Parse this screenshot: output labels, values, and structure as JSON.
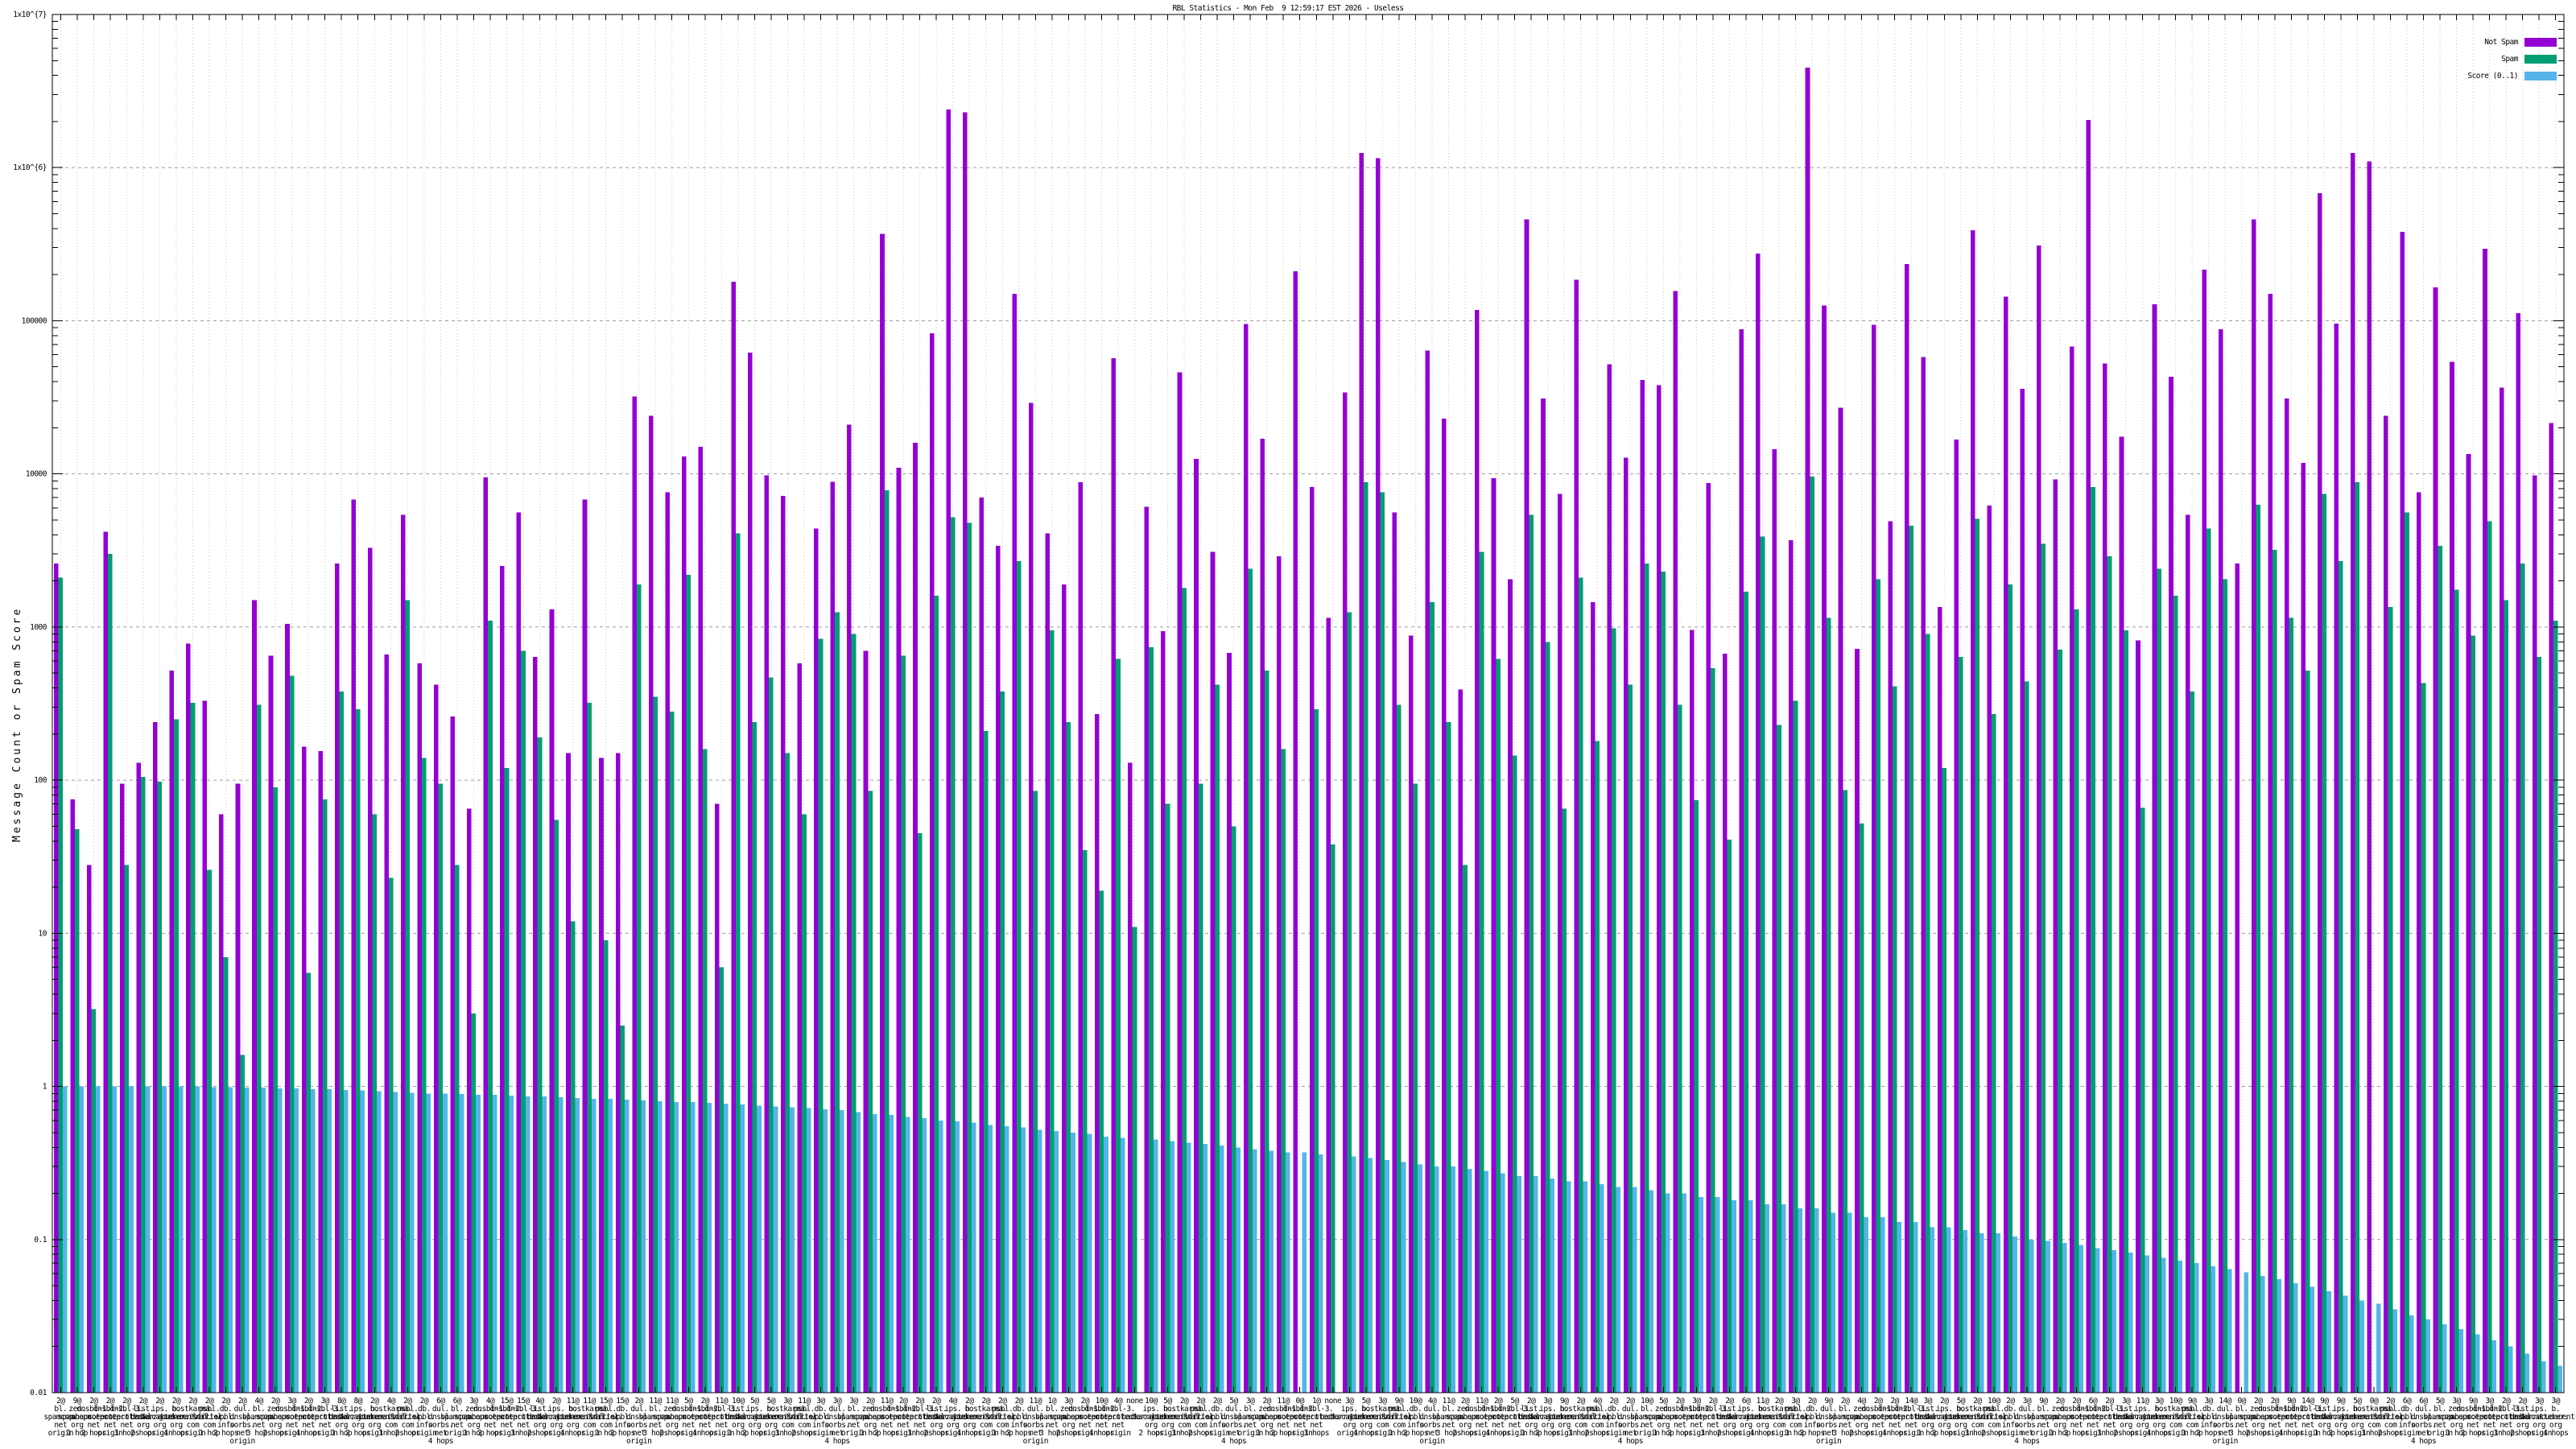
{
  "window": {
    "title": "RBL Statistics - Mon Feb  9 12:59:17 EST 2026 - Useless"
  },
  "legend": {
    "position": "top-right",
    "items": [
      {
        "label": "Not Spam",
        "color": "#9400d3"
      },
      {
        "label": "Spam",
        "color": "#009e73"
      },
      {
        "label": "Score (0..1)",
        "color": "#56b4e9"
      }
    ]
  },
  "y_axis": {
    "title": "Message Count or Spam Score",
    "scale": "log",
    "tick_labels": [
      "1x10^{7}",
      "1x10^{6}",
      "100000",
      "10000",
      "1000",
      "100",
      "10",
      "1",
      "0.1",
      "0.01"
    ],
    "tick_exponents": [
      7,
      6,
      5,
      4,
      3,
      2,
      1,
      0,
      -1,
      -2
    ]
  },
  "chart_data": {
    "type": "bar",
    "title": "RBL Statistics - Mon Feb  9 12:59:17 EST 2026 - Useless",
    "xlabel": "",
    "ylabel": "Message Count or Spam Score",
    "y_scale": "log",
    "ylim": [
      0.01,
      10000000
    ],
    "grid": true,
    "legend_position": "top-right",
    "label_line_separator": "|",
    "categories": [
      "2@|bl.|spamcop.|net|origin",
      "9@|zen.|spamhaus.|org|1 hop",
      "2@|dnsbl-1.|uceprotect.|net|2 hops",
      "2@|dnsbl-2.|uceprotect.|net|origin",
      "2@|dnsbl-3.|uceprotect.|net|3 hops",
      "2@|list.|dnswl.|org|2 hops",
      "2@|ips.|backscatterer.|org|origin",
      "2@|b.|barracudacentral.|org|4 hops",
      "2@|hostkarma.|junkemailfilter.|com|origin",
      "2@|psbl.|surriel.|com|1 hop",
      "2@|db.|wpbl.|info|2 hops",
      "2@|dul.|dnsbl.|sorbs.|net|origin",
      "4@|bl.|spamcop.|net|3 hops",
      "2@|zen.|spamhaus.|org|2 hops",
      "3@|dnsbl-1.|uceprotect.|net|origin",
      "2@|dnsbl-2.|uceprotect.|net|4 hops",
      "3@|dnsbl-3.|uceprotect.|net|origin",
      "8@|list.|dnswl.|org|1 hop",
      "8@|ips.|backscatterer.|org|2 hops",
      "2@|b.|barracudacentral.|org|origin",
      "4@|hostkarma.|junkemailfilter.|com|3 hops",
      "2@|psbl.|surriel.|com|2 hops",
      "2@|db.|wpbl.|info|origin",
      "6@|dul.|dnsbl.|sorbs.|net|4 hops",
      "6@|bl.|spamcop.|net|origin",
      "3@|zen.|spamhaus.|org|1 hop",
      "4@|dnsbl-1.|uceprotect.|net|2 hops",
      "15@|dnsbl-2.|uceprotect.|net|origin",
      "15@|dnsbl-3.|uceprotect.|net|3 hops",
      "4@|list.|dnswl.|org|2 hops",
      "2@|ips.|backscatterer.|org|origin",
      "11@|b.|barracudacentral.|org|4 hops",
      "11@|hostkarma.|junkemailfilter.|com|origin",
      "15@|psbl.|surriel.|com|1 hop",
      "15@|db.|wpbl.|info|2 hops",
      "2@|dul.|dnsbl.|sorbs.|net|origin",
      "11@|bl.|spamcop.|net|3 hops",
      "11@|zen.|spamhaus.|org|2 hops",
      "5@|dnsbl-1.|uceprotect.|net|origin",
      "2@|dnsbl-2.|uceprotect.|net|4 hops",
      "11@|dnsbl-3.|uceprotect.|net|origin",
      "10@|list.|dnswl.|org|1 hop",
      "5@|ips.|backscatterer.|org|2 hops",
      "5@|b.|barracudacentral.|org|origin",
      "3@|hostkarma.|junkemailfilter.|com|3 hops",
      "11@|psbl.|surriel.|com|2 hops",
      "3@|db.|wpbl.|info|origin",
      "3@|dul.|dnsbl.|sorbs.|net|4 hops",
      "3@|bl.|spamcop.|net|origin",
      "2@|zen.|spamhaus.|org|1 hop",
      "11@|dnsbl-1.|uceprotect.|net|2 hops",
      "2@|dnsbl-2.|uceprotect.|net|origin",
      "2@|dnsbl-3.|uceprotect.|net|3 hops",
      "2@|list.|dnswl.|org|2 hops",
      "4@|ips.|backscatterer.|org|origin",
      "2@|b.|barracudacentral.|org|4 hops",
      "2@|hostkarma.|junkemailfilter.|com|origin",
      "2@|psbl.|surriel.|com|1 hop",
      "2@|db.|wpbl.|info|2 hops",
      "11@|dul.|dnsbl.|sorbs.|net|origin",
      "1@|bl.|spamcop.|net|3 hops",
      "3@|zen.|spamhaus.|org|2 hops",
      "2@|dnsbl-1.|uceprotect.|net|origin",
      "10@|dnsbl-2.|uceprotect.|net|4 hops",
      "4@|dnsbl-3.|uceprotect.|net|origin",
      "none",
      "10@|ips.|backscatterer.|org|2 hops",
      "5@|b.|barracudacentral.|org|origin",
      "2@|hostkarma.|junkemailfilter.|com|3 hops",
      "2@|psbl.|surriel.|com|2 hops",
      "2@|db.|wpbl.|info|origin",
      "5@|dul.|dnsbl.|sorbs.|net|4 hops",
      "3@|bl.|spamcop.|net|origin",
      "2@|zen.|spamhaus.|org|1 hop",
      "11@|dnsbl-1.|uceprotect.|net|2 hops",
      "0@|dnsbl-2.|uceprotect.|net|origin",
      "1@|dnsbl-3.|uceprotect.|net|3 hops",
      "none",
      "3@|ips.|backscatterer.|org|origin",
      "5@|b.|barracudacentral.|org|4 hops",
      "3@|hostkarma.|junkemailfilter.|com|origin",
      "9@|psbl.|surriel.|com|1 hop",
      "10@|db.|wpbl.|info|2 hops",
      "4@|dul.|dnsbl.|sorbs.|net|origin",
      "11@|bl.|spamcop.|net|3 hops",
      "2@|zen.|spamhaus.|org|2 hops",
      "11@|dnsbl-1.|uceprotect.|net|origin",
      "2@|dnsbl-2.|uceprotect.|net|4 hops",
      "5@|dnsbl-3.|uceprotect.|net|origin",
      "2@|list.|dnswl.|org|1 hop",
      "3@|ips.|backscatterer.|org|2 hops",
      "9@|b.|barracudacentral.|org|origin",
      "2@|hostkarma.|junkemailfilter.|com|3 hops",
      "4@|psbl.|surriel.|com|2 hops",
      "2@|db.|wpbl.|info|origin",
      "2@|dul.|dnsbl.|sorbs.|net|4 hops",
      "10@|bl.|spamcop.|net|origin",
      "5@|zen.|spamhaus.|org|1 hop",
      "2@|dnsbl-1.|uceprotect.|net|2 hops",
      "3@|dnsbl-2.|uceprotect.|net|origin",
      "2@|dnsbl-3.|uceprotect.|net|3 hops",
      "2@|list.|dnswl.|org|2 hops",
      "6@|ips.|backscatterer.|org|origin",
      "11@|b.|barracudacentral.|org|4 hops",
      "2@|hostkarma.|junkemailfilter.|com|origin",
      "3@|psbl.|surriel.|com|1 hop",
      "2@|db.|wpbl.|info|2 hops",
      "9@|dul.|dnsbl.|sorbs.|net|origin",
      "2@|bl.|spamcop.|net|3 hops",
      "4@|zen.|spamhaus.|org|2 hops",
      "2@|dnsbl-1.|uceprotect.|net|origin",
      "2@|dnsbl-2.|uceprotect.|net|4 hops",
      "14@|dnsbl-3.|uceprotect.|net|origin",
      "3@|list.|dnswl.|org|1 hop",
      "2@|ips.|backscatterer.|org|2 hops",
      "5@|b.|barracudacentral.|org|origin",
      "2@|hostkarma.|junkemailfilter.|com|3 hops",
      "10@|psbl.|surriel.|com|2 hops",
      "2@|db.|wpbl.|info|origin",
      "3@|dul.|dnsbl.|sorbs.|net|4 hops",
      "9@|bl.|spamcop.|net|origin",
      "2@|zen.|spamhaus.|org|1 hop",
      "2@|dnsbl-1.|uceprotect.|net|2 hops",
      "6@|dnsbl-2.|uceprotect.|net|origin",
      "2@|dnsbl-3.|uceprotect.|net|3 hops",
      "3@|list.|dnswl.|org|2 hops",
      "11@|ips.|backscatterer.|org|origin",
      "3@|b.|barracudacentral.|org|4 hops",
      "10@|hostkarma.|junkemailfilter.|com|origin",
      "9@|psbl.|surriel.|com|1 hop",
      "3@|db.|wpbl.|info|2 hops",
      "14@|dul.|dnsbl.|sorbs.|net|origin",
      "0@|bl.|spamcop.|net|3 hops",
      "2@|zen.|spamhaus.|org|2 hops",
      "2@|dnsbl-1.|uceprotect.|net|origin",
      "9@|dnsbl-2.|uceprotect.|net|4 hops",
      "14@|dnsbl-3.|uceprotect.|net|origin",
      "9@|list.|dnswl.|org|1 hop",
      "9@|ips.|backscatterer.|org|2 hops",
      "5@|b.|barracudacentral.|org|origin",
      "0@|hostkarma.|junkemailfilter.|com|3 hops",
      "2@|psbl.|surriel.|com|2 hops",
      "6@|db.|wpbl.|info|origin",
      "6@|dul.|dnsbl.|sorbs.|net|4 hops",
      "5@|bl.|spamcop.|net|origin",
      "3@|zen.|spamhaus.|org|1 hop",
      "9@|dnsbl-1.|uceprotect.|net|2 hops",
      "3@|dnsbl-2.|uceprotect.|net|origin",
      "2@|dnsbl-3.|uceprotect.|net|3 hops",
      "2@|list.|dnswl.|org|2 hops",
      "3@|ips.|backscatterer.|org|origin",
      "3@|b.|barracudacentral.|org|4 hops"
    ],
    "series": [
      {
        "name": "Not Spam",
        "key": "not-spam",
        "color": "#9400d3",
        "values": [
          2600,
          75,
          28,
          4200,
          95,
          130,
          240,
          520,
          780,
          330,
          60,
          95,
          1500,
          650,
          1050,
          165,
          155,
          2600,
          6800,
          3300,
          660,
          5400,
          580,
          420,
          260,
          65,
          9500,
          2500,
          5600,
          640,
          1300,
          150,
          6800,
          140,
          150,
          32000,
          24000,
          7600,
          13000,
          15000,
          70,
          180000,
          62000,
          9800,
          7200,
          580,
          4400,
          8900,
          21000,
          700,
          370000,
          11000,
          16000,
          83000,
          2400000,
          2300000,
          7000,
          3400,
          150000,
          29000,
          4100,
          1900,
          8800,
          270,
          57000,
          130,
          6100,
          940,
          46000,
          12500,
          3100,
          680,
          95000,
          17000,
          2900,
          210000,
          8200,
          1150,
          34000,
          1250000,
          1150000,
          5600,
          880,
          64000,
          23000,
          390,
          118000,
          9400,
          2050,
          460000,
          31000,
          7400,
          185000,
          1450,
          52000,
          12800,
          41000,
          38000,
          156000,
          960,
          8700,
          670,
          88000,
          275000,
          14500,
          3700,
          4500000,
          126000,
          27000,
          720,
          94000,
          4900,
          235000,
          58000,
          1350,
          16800,
          390000,
          6200,
          144000,
          36000,
          310000,
          9200,
          68000,
          2050000,
          52500,
          17500,
          820,
          128000,
          43000,
          5400,
          215000,
          88000,
          2600,
          460000,
          150000,
          31000,
          11800,
          680000,
          96000,
          1250000,
          1100000,
          24000,
          380000,
          7600,
          165000,
          54000,
          13500,
          295000,
          36500,
          112000,
          9800,
          21500
        ]
      },
      {
        "name": "Spam",
        "key": "spam",
        "color": "#009e73",
        "values": [
          2100,
          48,
          3.2,
          3000,
          28,
          105,
          98,
          250,
          320,
          26,
          7,
          1.6,
          310,
          90,
          480,
          5.5,
          75,
          380,
          290,
          60,
          23,
          1500,
          140,
          95,
          28,
          3,
          1100,
          120,
          700,
          190,
          55,
          12,
          320,
          9,
          2.5,
          1900,
          350,
          280,
          2200,
          160,
          6,
          4100,
          240,
          470,
          150,
          60,
          840,
          1250,
          900,
          85,
          7800,
          650,
          45,
          1600,
          5200,
          4800,
          210,
          380,
          2700,
          85,
          950,
          240,
          35,
          19,
          620,
          11,
          740,
          70,
          1800,
          95,
          420,
          50,
          2400,
          520,
          160,
          null,
          290,
          38,
          1250,
          8800,
          7600,
          310,
          95,
          1450,
          240,
          28,
          3100,
          620,
          145,
          5400,
          800,
          65,
          2100,
          180,
          980,
          420,
          2600,
          2300,
          310,
          74,
          540,
          41,
          1700,
          3900,
          230,
          330,
          9600,
          1150,
          86,
          52,
          2050,
          410,
          4600,
          900,
          120,
          640,
          5100,
          270,
          1900,
          440,
          3500,
          710,
          1300,
          8200,
          2900,
          950,
          66,
          2400,
          1600,
          380,
          4400,
          2050,
          null,
          6300,
          3200,
          1150,
          520,
          7400,
          2700,
          8800,
          null,
          1350,
          5600,
          430,
          3400,
          1750,
          880,
          4900,
          1500,
          2600,
          640,
          1100
        ]
      },
      {
        "name": "Score (0..1)",
        "key": "score",
        "color": "#56b4e9",
        "values": [
          1.0,
          1.0,
          1.0,
          1.0,
          1.0,
          1.0,
          1.0,
          1.0,
          1.0,
          0.99,
          0.99,
          0.98,
          0.98,
          0.97,
          0.97,
          0.96,
          0.96,
          0.95,
          0.94,
          0.93,
          0.92,
          0.91,
          0.9,
          0.9,
          0.89,
          0.88,
          0.88,
          0.87,
          0.86,
          0.86,
          0.85,
          0.84,
          0.83,
          0.83,
          0.82,
          0.81,
          0.8,
          0.79,
          0.79,
          0.78,
          0.77,
          0.76,
          0.75,
          0.74,
          0.73,
          0.72,
          0.71,
          0.7,
          0.68,
          0.66,
          0.65,
          0.63,
          0.62,
          0.6,
          0.59,
          0.58,
          0.56,
          0.55,
          0.54,
          0.52,
          0.51,
          0.5,
          0.49,
          0.47,
          0.46,
          null,
          0.45,
          0.44,
          0.43,
          0.42,
          0.41,
          0.4,
          0.39,
          0.38,
          0.37,
          0.37,
          0.36,
          null,
          0.35,
          0.34,
          0.33,
          0.32,
          0.31,
          0.3,
          0.3,
          0.29,
          0.28,
          0.27,
          0.26,
          0.26,
          0.25,
          0.24,
          0.24,
          0.23,
          0.22,
          0.22,
          0.21,
          0.2,
          0.2,
          0.19,
          0.19,
          0.18,
          0.18,
          0.17,
          0.17,
          0.16,
          0.16,
          0.15,
          0.15,
          0.14,
          0.14,
          0.13,
          0.13,
          0.12,
          0.12,
          0.115,
          0.11,
          0.11,
          0.105,
          0.1,
          0.098,
          0.095,
          0.092,
          0.088,
          0.085,
          0.082,
          0.079,
          0.076,
          0.073,
          0.07,
          0.067,
          0.064,
          0.061,
          0.058,
          0.055,
          0.052,
          0.049,
          0.046,
          0.043,
          0.04,
          0.038,
          0.035,
          0.032,
          0.03,
          0.028,
          0.026,
          0.024,
          0.022,
          0.02,
          0.018,
          0.016,
          0.015
        ]
      }
    ]
  }
}
